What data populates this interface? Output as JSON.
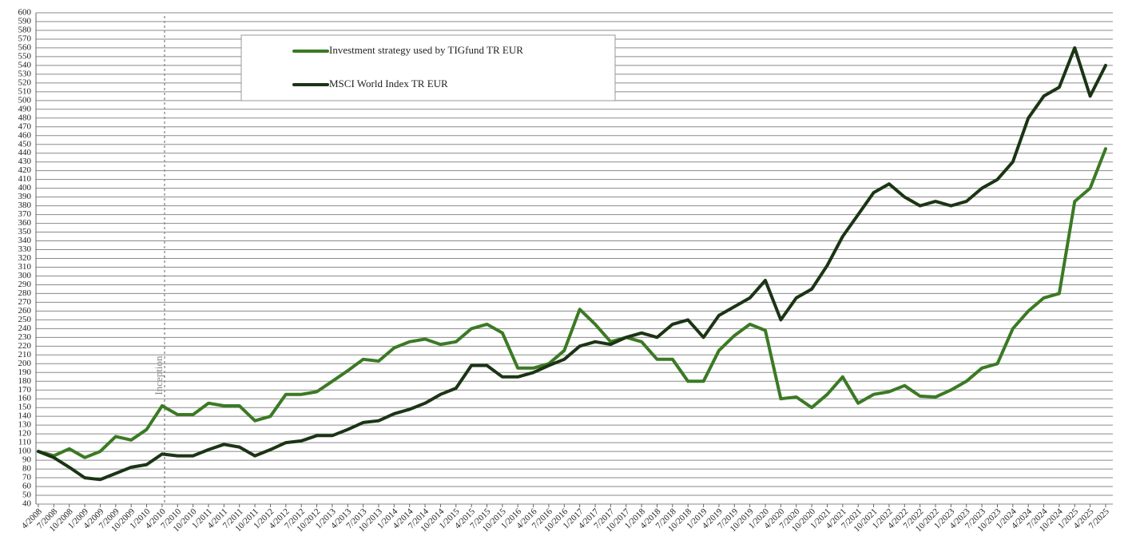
{
  "chart_data": {
    "type": "line",
    "categories": [
      "4/2008",
      "7/2008",
      "10/2008",
      "1/2009",
      "4/2009",
      "7/2009",
      "10/2009",
      "1/2010",
      "4/2010",
      "7/2010",
      "10/2010",
      "1/2011",
      "4/2011",
      "7/2011",
      "10/2011",
      "1/2012",
      "4/2012",
      "7/2012",
      "10/2012",
      "1/2013",
      "4/2013",
      "7/2013",
      "10/2013",
      "1/2014",
      "4/2014",
      "7/2014",
      "10/2014",
      "1/2015",
      "4/2015",
      "7/2015",
      "10/2015",
      "1/2016",
      "4/2016",
      "7/2016",
      "10/2016",
      "1/2017",
      "4/2017",
      "7/2017",
      "10/2017",
      "1/2018",
      "4/2018",
      "7/2018",
      "10/2018",
      "1/2019",
      "4/2019",
      "7/2019",
      "10/2019",
      "1/2020",
      "4/2020",
      "7/2020",
      "10/2020",
      "1/2021",
      "4/2021",
      "7/2021",
      "10/2021",
      "1/2022",
      "4/2022",
      "7/2022",
      "10/2022",
      "1/2023",
      "4/2023",
      "7/2023",
      "10/2023",
      "1/2024",
      "4/2024",
      "7/2024",
      "10/2024",
      "1/2025",
      "4/2025",
      "7/2025"
    ],
    "series": [
      {
        "name": "Investment strategy used by TIGfund TR EUR",
        "color": "#3b7a24",
        "values": [
          100,
          95,
          103,
          93,
          100,
          117,
          113,
          125,
          152,
          142,
          142,
          155,
          152,
          152,
          135,
          140,
          165,
          165,
          168,
          180,
          192,
          205,
          203,
          218,
          225,
          228,
          222,
          225,
          240,
          245,
          235,
          195,
          195,
          200,
          215,
          262,
          245,
          225,
          230,
          225,
          205,
          205,
          180,
          180,
          215,
          232,
          245,
          238,
          160,
          162,
          150,
          165,
          185,
          155,
          165,
          168,
          175,
          163,
          162,
          170,
          180,
          195,
          200,
          240,
          260,
          275,
          280,
          385,
          400,
          445
        ]
      },
      {
        "name": "MSCI World Index TR EUR",
        "color": "#1b3514",
        "values": [
          100,
          93,
          82,
          70,
          68,
          75,
          82,
          85,
          97,
          95,
          95,
          102,
          108,
          105,
          95,
          102,
          110,
          112,
          118,
          118,
          125,
          133,
          135,
          143,
          148,
          155,
          165,
          172,
          198,
          198,
          185,
          185,
          190,
          198,
          205,
          220,
          225,
          222,
          230,
          235,
          230,
          245,
          250,
          230,
          255,
          265,
          275,
          295,
          250,
          275,
          285,
          312,
          345,
          370,
          395,
          405,
          390,
          380,
          385,
          380,
          385,
          400,
          410,
          430,
          480,
          505,
          515,
          560,
          505,
          540
        ]
      }
    ],
    "ylim": [
      40,
      600
    ],
    "yticks": [
      40,
      50,
      60,
      70,
      80,
      90,
      100,
      110,
      120,
      130,
      140,
      150,
      160,
      170,
      180,
      190,
      200,
      210,
      220,
      230,
      240,
      250,
      260,
      270,
      280,
      290,
      300,
      310,
      320,
      330,
      340,
      350,
      360,
      370,
      380,
      390,
      400,
      410,
      420,
      430,
      440,
      450,
      460,
      470,
      480,
      490,
      500,
      510,
      520,
      530,
      540,
      550,
      560,
      570,
      580,
      590,
      600
    ],
    "grid": true,
    "annotation": "Inception"
  }
}
